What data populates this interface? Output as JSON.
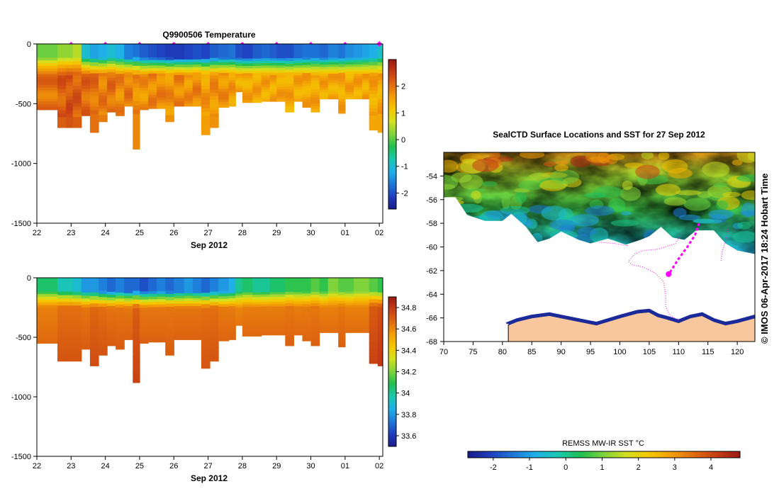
{
  "colors": {
    "cmap": [
      "#1a1a8a",
      "#1f3fc0",
      "#1e78d8",
      "#1fb0e8",
      "#19c9b0",
      "#1fc050",
      "#7fd23a",
      "#d4e020",
      "#f5c800",
      "#f39d07",
      "#e06a10",
      "#c63c14",
      "#9a1a14"
    ],
    "land": "#f9c79e",
    "track": "#ff00ff",
    "bg": "#ffffff"
  },
  "chart_data": [
    {
      "type": "heatmap",
      "title": "Q9900506  Temperature",
      "xlabel": "Sep 2012",
      "ylabel": "",
      "x_ticks": [
        "22",
        "23",
        "24",
        "25",
        "26",
        "27",
        "28",
        "29",
        "30",
        "01",
        "02"
      ],
      "y_ticks": [
        "0",
        "-500",
        "-1000",
        "-1500"
      ],
      "ylim": [
        -1500,
        0
      ],
      "x_range": [
        22,
        32.1
      ],
      "profile_times": [
        23,
        24,
        25,
        26,
        27,
        28,
        29,
        30,
        31,
        32
      ],
      "colorbar": {
        "ticks": [
          "-2",
          "-1",
          "0",
          "1",
          "2"
        ],
        "range": [
          -2.6,
          3.0
        ]
      },
      "profile_x": [
        22,
        22.6,
        22.85,
        23.05,
        23.3,
        23.55,
        23.8,
        24.05,
        24.3,
        24.55,
        24.8,
        25.0,
        25.25,
        25.5,
        25.75,
        26.0,
        26.3,
        26.55,
        26.8,
        27.05,
        27.3,
        27.6,
        27.8,
        28.0,
        28.3,
        28.55,
        28.8,
        29.0,
        29.25,
        29.5,
        29.75,
        30.0,
        30.25,
        30.5,
        30.8,
        31.0,
        31.25,
        31.5,
        31.7,
        31.95,
        32.1
      ],
      "max_depth": [
        550,
        700,
        700,
        700,
        600,
        740,
        650,
        570,
        600,
        520,
        880,
        550,
        540,
        540,
        650,
        520,
        520,
        520,
        760,
        700,
        530,
        520,
        400,
        490,
        490,
        480,
        480,
        480,
        570,
        480,
        530,
        570,
        460,
        460,
        580,
        460,
        460,
        460,
        720,
        740,
        740
      ],
      "surface_value": [
        0.1,
        0.3,
        0.3,
        0.5,
        -1.0,
        -1.3,
        -1.2,
        -1.0,
        -1.2,
        -1.6,
        -1.7,
        -1.9,
        -2.0,
        -2.1,
        -2.2,
        -2.2,
        -2.1,
        -2.0,
        -2.1,
        -1.9,
        -1.8,
        -1.7,
        -2.0,
        -2.1,
        -1.9,
        -1.8,
        -1.9,
        -2.0,
        -2.0,
        -1.8,
        -1.7,
        -1.7,
        -1.8,
        -1.6,
        -1.7,
        -1.5,
        -1.4,
        -1.3,
        -1.2,
        -0.9,
        -0.8
      ],
      "deep_value": [
        2.0,
        2.2,
        2.3,
        2.2,
        2.1,
        2.0,
        1.9,
        2.0,
        1.8,
        1.9,
        1.8,
        1.7,
        1.8,
        1.8,
        1.7,
        1.8,
        1.7,
        1.8,
        1.6,
        1.7,
        1.7,
        1.6,
        1.5,
        1.5,
        1.5,
        1.5,
        1.5,
        1.5,
        1.5,
        1.5,
        1.5,
        1.5,
        1.5,
        1.5,
        1.5,
        1.5,
        1.5,
        1.5,
        1.5,
        1.5,
        1.5
      ]
    },
    {
      "type": "heatmap",
      "title": "",
      "xlabel": "Sep 2012",
      "ylabel": "",
      "x_ticks": [
        "22",
        "23",
        "24",
        "25",
        "26",
        "27",
        "28",
        "29",
        "30",
        "01",
        "02"
      ],
      "y_ticks": [
        "0",
        "-500",
        "-1000",
        "-1500"
      ],
      "ylim": [
        -1500,
        0
      ],
      "x_range": [
        22,
        32.1
      ],
      "colorbar": {
        "ticks": [
          "33.6",
          "33.8",
          "34",
          "34.2",
          "34.4",
          "34.6",
          "34.8"
        ],
        "range": [
          33.5,
          34.9
        ]
      },
      "profile_x": [
        22,
        22.6,
        22.85,
        23.05,
        23.3,
        23.55,
        23.8,
        24.05,
        24.3,
        24.55,
        24.8,
        25.0,
        25.25,
        25.5,
        25.75,
        26.0,
        26.3,
        26.55,
        26.8,
        27.05,
        27.3,
        27.6,
        27.8,
        28.0,
        28.3,
        28.55,
        28.8,
        29.0,
        29.25,
        29.5,
        29.75,
        30.0,
        30.25,
        30.5,
        30.8,
        31.0,
        31.25,
        31.5,
        31.7,
        31.95,
        32.1
      ],
      "max_depth": [
        550,
        700,
        700,
        700,
        600,
        740,
        650,
        570,
        600,
        520,
        880,
        550,
        540,
        540,
        650,
        520,
        520,
        520,
        760,
        700,
        530,
        520,
        400,
        490,
        490,
        480,
        480,
        480,
        570,
        480,
        530,
        570,
        460,
        460,
        580,
        460,
        460,
        460,
        720,
        740,
        740
      ],
      "surface_value": [
        34.05,
        33.95,
        33.95,
        33.9,
        33.8,
        33.8,
        33.75,
        33.7,
        33.75,
        33.7,
        33.7,
        33.65,
        33.7,
        33.75,
        33.7,
        33.75,
        33.8,
        33.75,
        33.7,
        33.75,
        33.8,
        33.85,
        34.0,
        34.05,
        34.0,
        34.0,
        34.05,
        34.05,
        34.1,
        34.1,
        34.1,
        34.15,
        34.1,
        34.2,
        34.15,
        34.15,
        34.2,
        34.2,
        34.15,
        34.1,
        34.1
      ],
      "deep_value": [
        34.65,
        34.7,
        34.7,
        34.7,
        34.68,
        34.72,
        34.7,
        34.68,
        34.68,
        34.67,
        34.75,
        34.67,
        34.67,
        34.67,
        34.68,
        34.67,
        34.67,
        34.67,
        34.7,
        34.7,
        34.66,
        34.66,
        34.62,
        34.65,
        34.65,
        34.65,
        34.65,
        34.65,
        34.67,
        34.65,
        34.66,
        34.67,
        34.64,
        34.64,
        34.67,
        34.64,
        34.64,
        34.64,
        34.75,
        34.78,
        34.78
      ]
    },
    {
      "type": "heatmap",
      "title": "SealCTD Surface Locations and SST for 27 Sep 2012",
      "xlabel": "",
      "ylabel": "",
      "x_ticks": [
        "70",
        "75",
        "80",
        "85",
        "90",
        "95",
        "100",
        "105",
        "110",
        "115",
        "120"
      ],
      "y_ticks": [
        "-54",
        "-56",
        "-58",
        "-60",
        "-62",
        "-64",
        "-66",
        "-68"
      ],
      "xlim": [
        70,
        123
      ],
      "ylim": [
        -68,
        -52
      ],
      "colorbar": {
        "label": "REMSS MW-IR SST °C",
        "ticks": [
          "-2",
          "-1",
          "0",
          "1",
          "2",
          "3",
          "4"
        ],
        "range": [
          -2.7,
          4.8
        ]
      },
      "track_path": [
        [
          113.5,
          -58
        ],
        [
          112.8,
          -59
        ],
        [
          111.5,
          -60
        ],
        [
          110,
          -61
        ],
        [
          108.6,
          -62.1
        ],
        [
          108.4,
          -62.4
        ]
      ],
      "track_end": [
        108.3,
        -62.3
      ],
      "dotted_tracks": [
        [
          [
            110.5,
            -58.9
          ],
          [
            109.5,
            -59.7
          ],
          [
            106.5,
            -60.2
          ],
          [
            104,
            -60.3
          ],
          [
            102.5,
            -60.6
          ],
          [
            101.5,
            -61.2
          ],
          [
            102,
            -61.5
          ],
          [
            104,
            -61.7
          ],
          [
            106,
            -62.2
          ],
          [
            107.4,
            -62.9
          ],
          [
            107.8,
            -64
          ],
          [
            107.8,
            -65
          ],
          [
            108.5,
            -65.8
          ],
          [
            110,
            -66.2
          ]
        ],
        [
          [
            118.5,
            -58.3
          ],
          [
            118,
            -59.5
          ],
          [
            117.4,
            -60.5
          ],
          [
            117.2,
            -61.2
          ]
        ],
        [
          [
            96.5,
            -59.6
          ],
          [
            99,
            -59.7
          ],
          [
            101.4,
            -59.9
          ]
        ]
      ],
      "ice_edge": [
        [
          72,
          -55.8
        ],
        [
          74,
          -57.3
        ],
        [
          77,
          -57.8
        ],
        [
          80,
          -57.8
        ],
        [
          81.5,
          -57.2
        ],
        [
          84,
          -58.3
        ],
        [
          86,
          -59.6
        ],
        [
          88,
          -59.3
        ],
        [
          90,
          -58.7
        ],
        [
          93,
          -59.4
        ],
        [
          95,
          -59.7
        ],
        [
          98,
          -59.3
        ],
        [
          101,
          -59.8
        ],
        [
          103.5,
          -59.4
        ],
        [
          105,
          -59.1
        ],
        [
          107,
          -58.3
        ],
        [
          109,
          -59.2
        ],
        [
          111,
          -59.4
        ],
        [
          113,
          -58.6
        ],
        [
          116,
          -58.6
        ],
        [
          118,
          -59.7
        ],
        [
          120,
          -60.3
        ],
        [
          123,
          -60.6
        ]
      ],
      "coast": [
        [
          81,
          -66.6
        ],
        [
          82.5,
          -66.3
        ],
        [
          85,
          -66.0
        ],
        [
          88,
          -65.8
        ],
        [
          91,
          -66.1
        ],
        [
          94,
          -66.4
        ],
        [
          96,
          -66.6
        ],
        [
          100,
          -66.0
        ],
        [
          103,
          -65.6
        ],
        [
          105,
          -65.5
        ],
        [
          106.5,
          -65.9
        ],
        [
          108,
          -66.1
        ],
        [
          110,
          -66.4
        ],
        [
          112,
          -66.0
        ],
        [
          114,
          -65.8
        ],
        [
          116,
          -66.3
        ],
        [
          118,
          -66.6
        ],
        [
          120,
          -66.4
        ],
        [
          123,
          -66.0
        ]
      ],
      "sst_seed": 7
    }
  ],
  "watermark": "© IMOS 06-Apr-2017 18:24 Hobart Time"
}
